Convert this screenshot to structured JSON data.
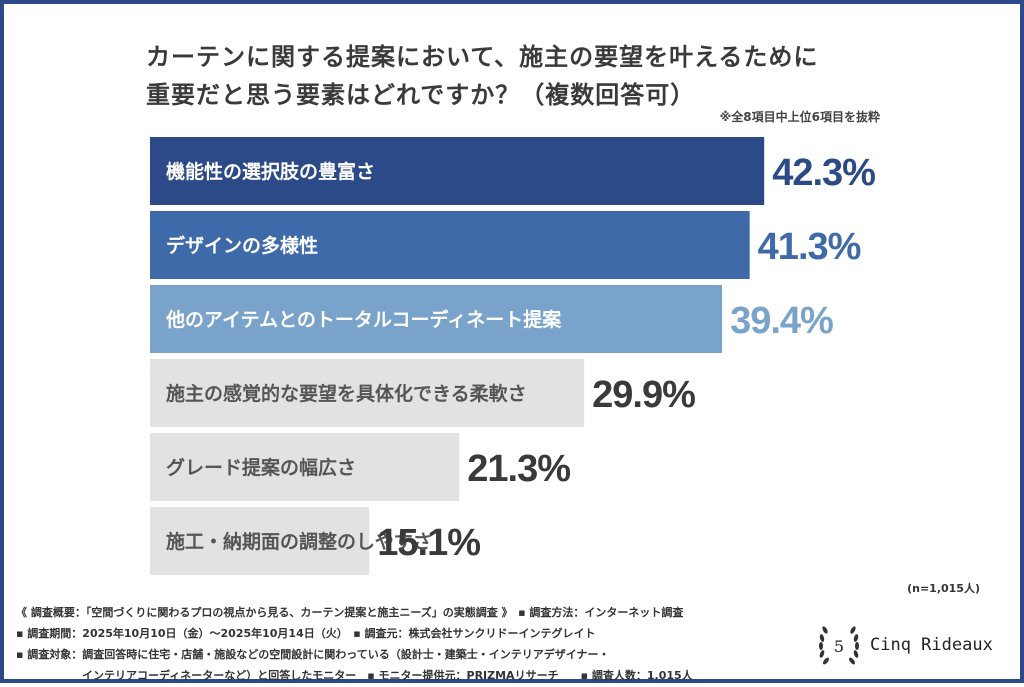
{
  "chart_data": {
    "type": "bar",
    "orientation": "horizontal",
    "title": "カーテンに関する提案において、施主の要望を叶えるために重要だと思う要素はどれですか？（複数回答可）",
    "title_lines": [
      "カーテンに関する提案において、施主の要望を叶えるために",
      "重要だと思う要素はどれですか？（複数回答可）"
    ],
    "note": "※全8項目中上位6項目を抜粋",
    "categories": [
      "機能性の選択肢の豊富さ",
      "デザインの多様性",
      "他のアイテムとのトータルコーディネート提案",
      "施主の感覚的な要望を具体化できる柔軟さ",
      "グレード提案の幅広さ",
      "施工・納期面の調整のしやすさ"
    ],
    "values": [
      42.3,
      41.3,
      39.4,
      29.9,
      21.3,
      15.1
    ],
    "value_labels": [
      "42.3%",
      "41.3%",
      "39.4%",
      "29.9%",
      "21.3%",
      "15.1%"
    ],
    "bar_colors": [
      "#2b4a87",
      "#3f6aa9",
      "#7aa3cc",
      "#e2e2e2",
      "#e2e2e2",
      "#e2e2e2"
    ],
    "label_colors": [
      "#ffffff",
      "#ffffff",
      "#ffffff",
      "#555555",
      "#555555",
      "#555555"
    ],
    "value_colors": [
      "#2b4a87",
      "#3f6aa9",
      "#7aa3cc",
      "#3a3a3a",
      "#3a3a3a",
      "#3a3a3a"
    ],
    "xlim": [
      0,
      45
    ],
    "grid": false,
    "sample_size": "(n=1,015人)"
  },
  "footer": {
    "lines": [
      "《 調査概要：「空間づくりに関わるプロの視点から見る、カーテン提案と施主ニーズ」の実態調査 》　▪ 調査方法：インターネット調査",
      "▪ 調査期間：2025年10月10日（金）〜2025年10月14日（火）　▪ 調査元：株式会社サンクリドーインテグレイト",
      "▪ 調査対象：調査回答時に住宅・店舗・施設などの空間設計に関わっている（設計士・建築士・インテリアデザイナー・",
      "　　　　　　インテリアコーディネーターなど）と回答したモニター　▪ モニター提供元：PRIZMAリサーチ　　▪ 調査人数：1,015人"
    ]
  },
  "logo": {
    "numeral": "5",
    "text": "Cinq Rideaux"
  }
}
